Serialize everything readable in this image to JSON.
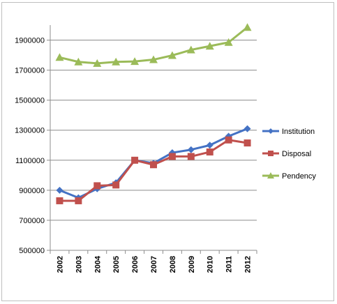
{
  "chart_data": {
    "type": "line",
    "categories": [
      "2002",
      "2003",
      "2004",
      "2005",
      "2006",
      "2007",
      "2008",
      "2009",
      "2010",
      "2011",
      "2012"
    ],
    "y_ticks": [
      "1900000",
      "1700000",
      "1500000",
      "1300000",
      "1100000",
      "900000",
      "700000",
      "500000"
    ],
    "ylim": [
      500000,
      2000000
    ],
    "grid": true,
    "legend_position": "right",
    "series": [
      {
        "name": "Institution",
        "color": "#4472C4",
        "marker": "diamond",
        "values": [
          900000,
          850000,
          910000,
          950000,
          1100000,
          1080000,
          1150000,
          1170000,
          1200000,
          1260000,
          1310000
        ]
      },
      {
        "name": "Disposal",
        "color": "#C0504D",
        "marker": "square",
        "values": [
          830000,
          830000,
          930000,
          935000,
          1100000,
          1070000,
          1125000,
          1125000,
          1155000,
          1235000,
          1215000
        ]
      },
      {
        "name": "Pendency",
        "color": "#9BBB59",
        "marker": "triangle",
        "values": [
          1785000,
          1755000,
          1745000,
          1755000,
          1758000,
          1770000,
          1798000,
          1835000,
          1860000,
          1885000,
          1985000
        ]
      }
    ]
  }
}
